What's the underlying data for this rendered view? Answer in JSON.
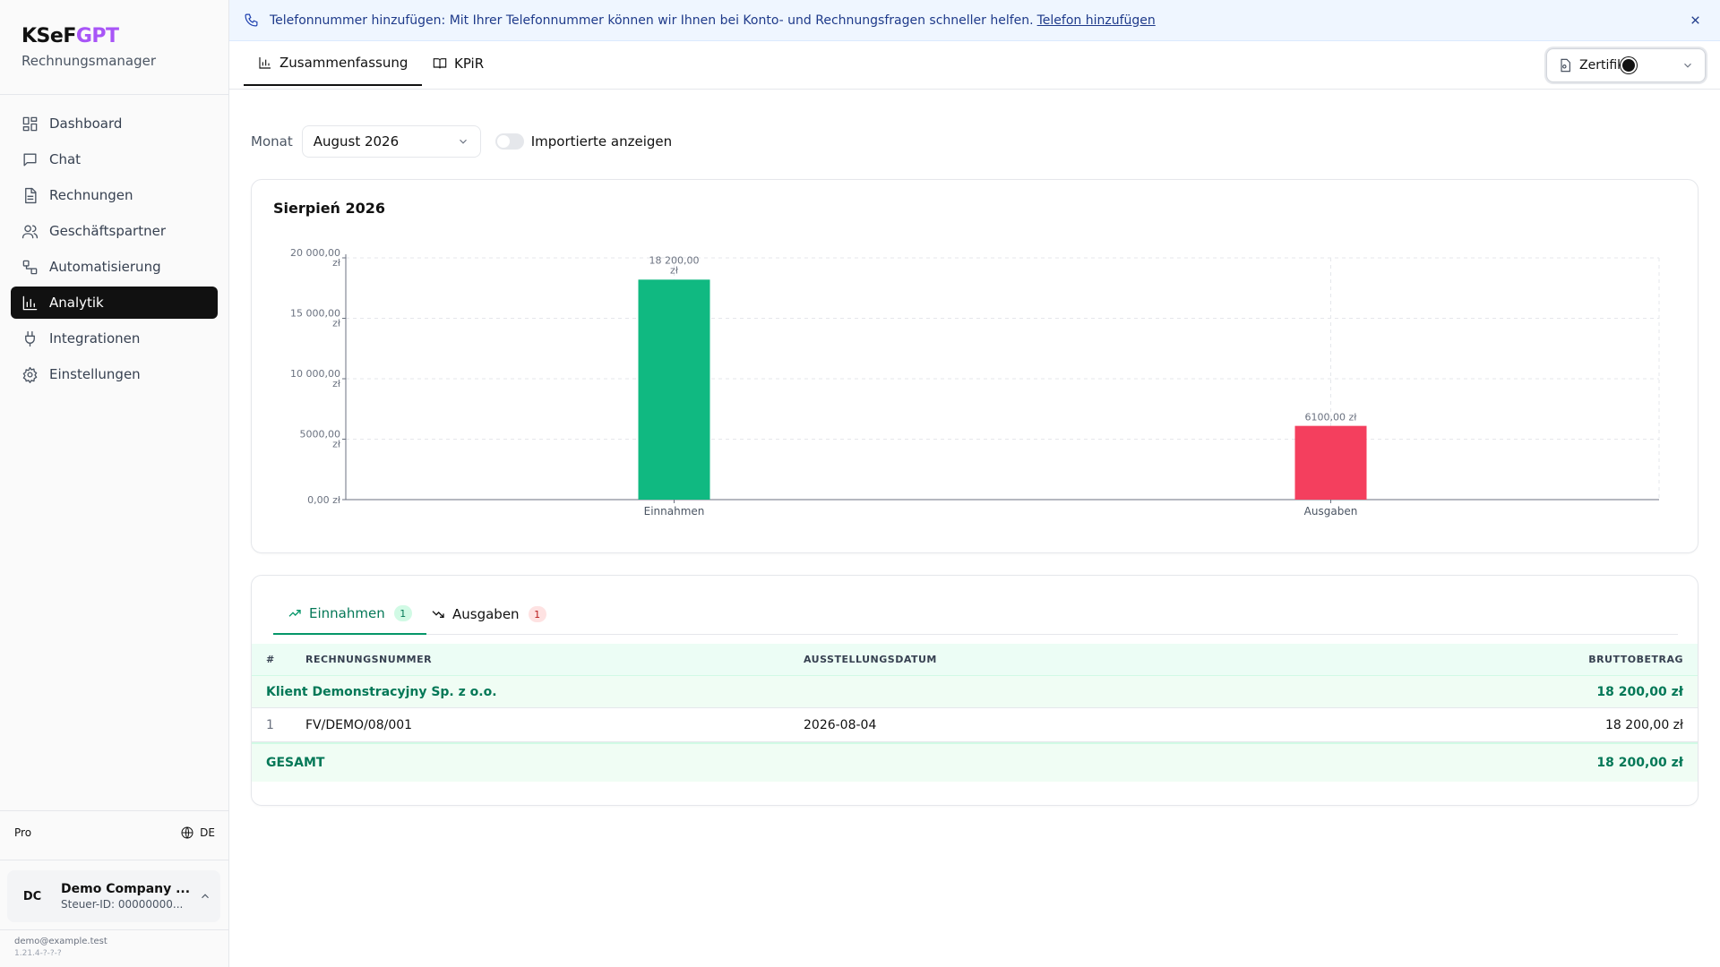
{
  "brand": {
    "title_main": "KSeF",
    "title_accent": "GPT",
    "subtitle": "Rechnungsmanager",
    "accent_color": "#a855f7"
  },
  "sidebar": {
    "items": [
      {
        "label": "Dashboard",
        "icon": "dashboard-icon"
      },
      {
        "label": "Chat",
        "icon": "chat-icon"
      },
      {
        "label": "Rechnungen",
        "icon": "invoice-icon"
      },
      {
        "label": "Geschäftspartner",
        "icon": "users-icon"
      },
      {
        "label": "Automatisierung",
        "icon": "workflow-icon"
      },
      {
        "label": "Analytik",
        "icon": "bar-chart-icon",
        "active": true
      },
      {
        "label": "Integrationen",
        "icon": "plug-icon"
      },
      {
        "label": "Einstellungen",
        "icon": "gear-icon"
      }
    ],
    "plan": "Pro",
    "language": "DE",
    "company": {
      "initials": "DC",
      "name": "Demo Company ...",
      "tax_id": "Steuer-ID: 00000000..."
    },
    "email": "demo@example.test",
    "version": "1.21.4-?-?-?"
  },
  "banner": {
    "text": "Telefonnummer hinzufügen: Mit Ihrer Telefonnummer können wir Ihnen bei Konto- und Rechnungsfragen schneller helfen.",
    "link": "Telefon hinzufügen"
  },
  "tabs": [
    {
      "label": "Zusammenfassung",
      "active": true
    },
    {
      "label": "KPiR",
      "active": false
    }
  ],
  "certificate_select": {
    "value": "Zertifik"
  },
  "filters": {
    "month_label": "Monat",
    "month_value": "August 2026",
    "toggle_label": "Importierte anzeigen",
    "toggle_on": false
  },
  "chart_data": {
    "type": "bar",
    "title": "Sierpień 2026",
    "categories": [
      "Einnahmen",
      "Ausgaben"
    ],
    "values": [
      18200,
      6100
    ],
    "value_labels": [
      "18 200,00 zł",
      "6100,00 zł"
    ],
    "colors": [
      "#10b981",
      "#f43f5e"
    ],
    "ylim": [
      0,
      20000
    ],
    "yticks": [
      0,
      5000,
      10000,
      15000,
      20000
    ],
    "ytick_labels": [
      "0,00 zł",
      "5000,00 zł",
      "10 000,00 zł",
      "15 000,00 zł",
      "20 000,00 zł"
    ],
    "grid": true,
    "xlabel": "",
    "ylabel": ""
  },
  "table": {
    "subtabs": [
      {
        "label": "Einnahmen",
        "count": "1",
        "active": true
      },
      {
        "label": "Ausgaben",
        "count": "1",
        "active": false
      }
    ],
    "headers": {
      "num": "#",
      "invoice": "RECHNUNGSNUMMER",
      "date": "AUSSTELLUNGSDATUM",
      "amount": "BRUTTOBETRAG"
    },
    "group": {
      "name": "Klient Demonstracyjny Sp. z o.o.",
      "amount": "18 200,00 zł"
    },
    "rows": [
      {
        "num": "1",
        "invoice": "FV/DEMO/08/001",
        "date": "2026-08-04",
        "amount": "18 200,00 zł"
      }
    ],
    "total": {
      "label": "GESAMT",
      "amount": "18 200,00 zł"
    }
  }
}
